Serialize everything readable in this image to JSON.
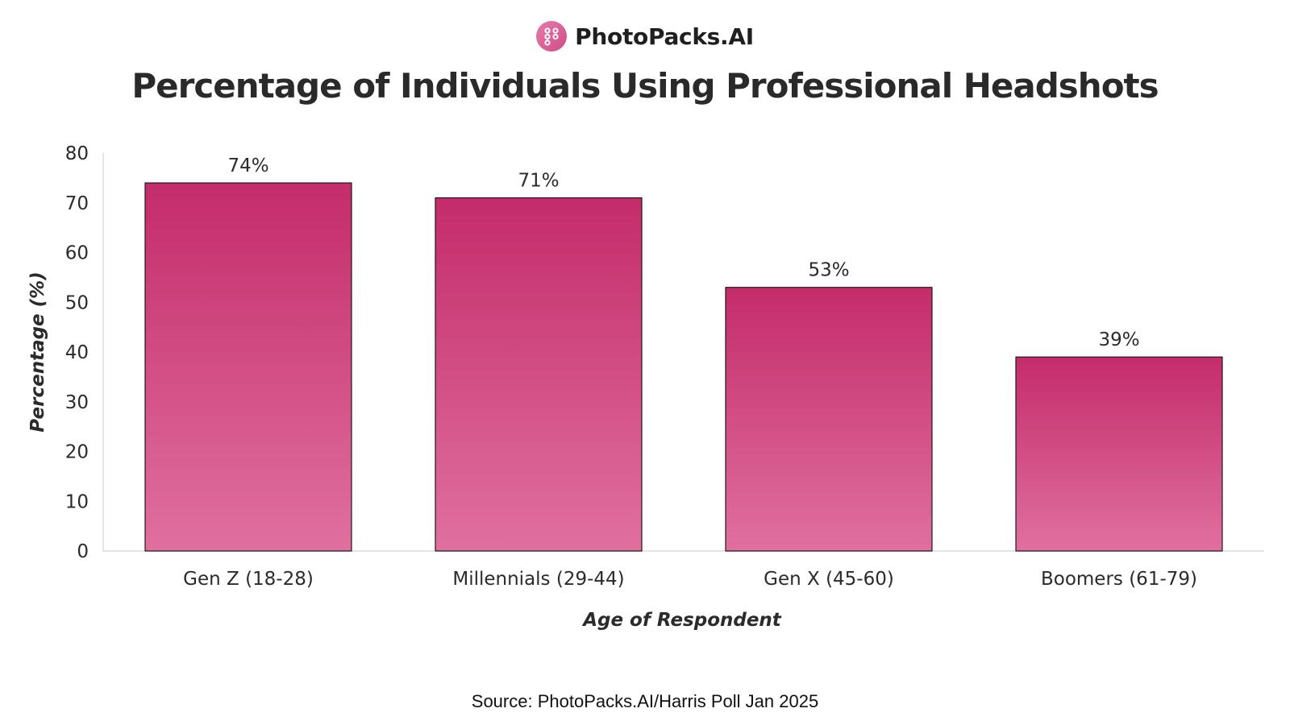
{
  "brand": {
    "name": "PhotoPacks.AI",
    "icon": "photopacks-logo-icon",
    "color": "#e0689f"
  },
  "chart_data": {
    "type": "bar",
    "title": "Percentage of Individuals Using Professional Headshots",
    "xlabel": "Age of Respondent",
    "ylabel": "Percentage (%)",
    "categories": [
      "Gen Z (18-28)",
      "Millennials (29-44)",
      "Gen X (45-60)",
      "Boomers (61-79)"
    ],
    "values": [
      74,
      71,
      53,
      39
    ],
    "data_labels": [
      "74%",
      "71%",
      "53%",
      "39%"
    ],
    "ylim": [
      0,
      80
    ],
    "yticks": [
      0,
      10,
      20,
      30,
      40,
      50,
      60,
      70,
      80
    ],
    "grid": false,
    "legend": "none",
    "bar_color_top": "#c42c6a",
    "bar_color_bottom": "#e0709f",
    "bar_outline": "#1a1a1a"
  },
  "source": "Source: PhotoPacks.AI/Harris Poll Jan 2025"
}
